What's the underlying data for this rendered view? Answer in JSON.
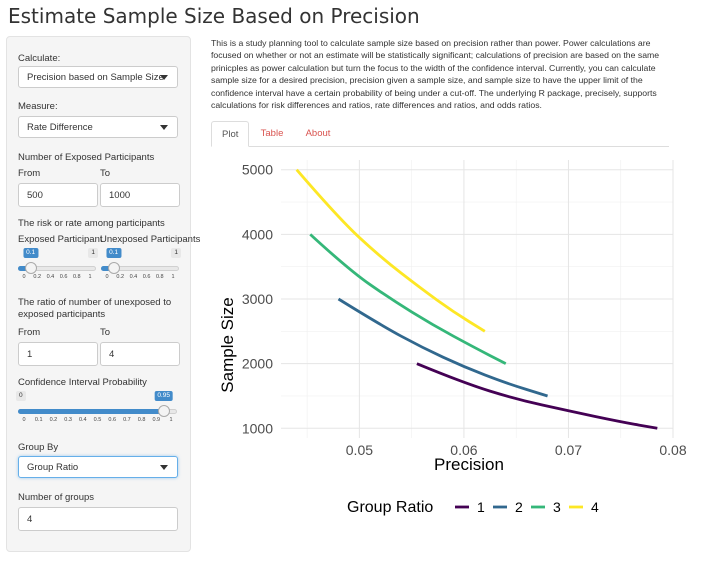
{
  "page": {
    "title": "Estimate Sample Size Based on Precision"
  },
  "sidebar": {
    "calculate": {
      "label": "Calculate:",
      "value": "Precision based on Sample Size"
    },
    "measure": {
      "label": "Measure:",
      "value": "Rate Difference"
    },
    "exposed": {
      "label": "Number of Exposed Participants",
      "from_label": "From",
      "to_label": "To",
      "from_value": "500",
      "to_value": "1000"
    },
    "risk": {
      "label": "The risk or rate among participants",
      "exposed_label": "Exposed Participant",
      "unexposed_label": "Unexposed Participants",
      "exposed_slider": {
        "min": "0",
        "max": "1",
        "value": "0.1",
        "fraction": 0.1
      },
      "unexposed_slider": {
        "min": "0",
        "max": "1",
        "value": "0.1",
        "fraction": 0.1
      },
      "ticks": [
        "0",
        "0.2",
        "0.4",
        "0.6",
        "0.8",
        "1"
      ]
    },
    "ratio": {
      "label_line1": "The ratio of number of unexposed to",
      "label_line2": "exposed participants",
      "from_label": "From",
      "to_label": "To",
      "from_value": "1",
      "to_value": "4"
    },
    "ci": {
      "label": "Confidence Interval Probability",
      "min": "0",
      "max": "1",
      "value": "0.95",
      "fraction": 0.95,
      "ticks": [
        "0",
        "0.1",
        "0.2",
        "0.3",
        "0.4",
        "0.5",
        "0.6",
        "0.7",
        "0.8",
        "0.9",
        "1"
      ]
    },
    "group_by": {
      "label": "Group By",
      "value": "Group Ratio"
    },
    "groups": {
      "label": "Number of groups",
      "value": "4"
    }
  },
  "main": {
    "description": "This is a study planning tool to calculate sample size based on precision rather than power. Power calculations are focused on whether or not an estimate will be statistically significant; calculations of precision are based on the same prinicples as power calculation but turn the focus to the width of the confidence interval. Currently, you can calculate sample size for a desired precision, precision given a sample size, and sample size to have the upper limit of the confidence interval have a certain probability of being under a cut-off. The underlying R package, precisely, supports calculations for risk differences and ratios, rate differences and ratios, and odds ratios.",
    "tabs": [
      {
        "label": "Plot"
      },
      {
        "label": "Table"
      },
      {
        "label": "About"
      }
    ]
  },
  "chart_data": {
    "type": "line",
    "xlabel": "Precision",
    "ylabel": "Sample Size",
    "xlim": [
      0.0425,
      0.08
    ],
    "ylim": [
      850,
      5150
    ],
    "xticks": [
      "0.05",
      "0.06",
      "0.07",
      "0.08"
    ],
    "yticks": [
      "1000",
      "2000",
      "3000",
      "4000",
      "5000"
    ],
    "xtick_values": [
      0.05,
      0.06,
      0.07,
      0.08
    ],
    "ytick_values": [
      1000,
      2000,
      3000,
      4000,
      5000
    ],
    "grid": true,
    "legend": {
      "title": "Group Ratio",
      "position": "bottom"
    },
    "series": [
      {
        "name": "1",
        "color": "#440154",
        "points": [
          [
            0.0555,
            2000
          ],
          [
            0.06,
            1700
          ],
          [
            0.065,
            1450
          ],
          [
            0.07,
            1270
          ],
          [
            0.075,
            1100
          ],
          [
            0.0785,
            1000
          ]
        ]
      },
      {
        "name": "2",
        "color": "#31688e",
        "points": [
          [
            0.048,
            3000
          ],
          [
            0.052,
            2600
          ],
          [
            0.056,
            2250
          ],
          [
            0.06,
            1950
          ],
          [
            0.064,
            1700
          ],
          [
            0.068,
            1500
          ]
        ]
      },
      {
        "name": "3",
        "color": "#35b779",
        "points": [
          [
            0.0453,
            4000
          ],
          [
            0.049,
            3450
          ],
          [
            0.053,
            3000
          ],
          [
            0.057,
            2600
          ],
          [
            0.061,
            2250
          ],
          [
            0.064,
            2000
          ]
        ]
      },
      {
        "name": "4",
        "color": "#fde725",
        "points": [
          [
            0.044,
            5000
          ],
          [
            0.048,
            4250
          ],
          [
            0.052,
            3650
          ],
          [
            0.056,
            3150
          ],
          [
            0.059,
            2800
          ],
          [
            0.062,
            2500
          ]
        ]
      }
    ]
  }
}
